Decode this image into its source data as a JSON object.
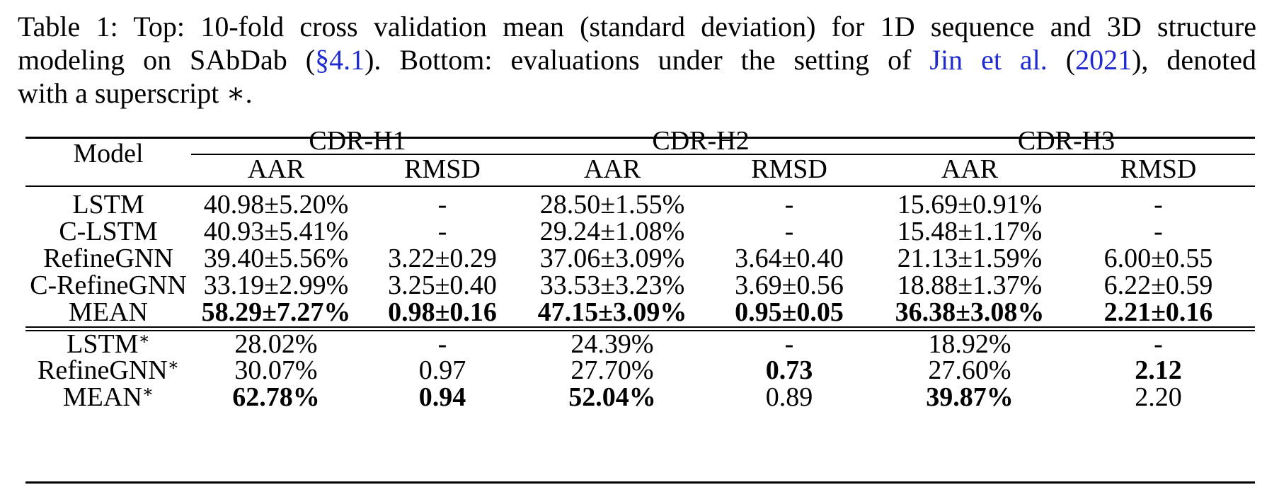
{
  "caption": {
    "part1": "Table 1: Top: 10-fold cross validation mean (standard deviation) for 1D sequence and 3D structure",
    "part2a": "modeling on SAbDab (",
    "part2_ref": "§4.1",
    "part2b": ").  Bottom: evaluations under the setting of ",
    "part2_cite": "Jin et al.",
    "part2c": " (",
    "part2_year": "2021",
    "part2d": "), denoted",
    "part3": "with a superscript ∗."
  },
  "table": {
    "model_header": "Model",
    "groups": [
      "CDR-H1",
      "CDR-H2",
      "CDR-H3"
    ],
    "subheaders": [
      "AAR",
      "RMSD",
      "AAR",
      "RMSD",
      "AAR",
      "RMSD"
    ],
    "top_rows": [
      {
        "model": "LSTM",
        "values": [
          "40.98±5.20%",
          "-",
          "28.50±1.55%",
          "-",
          "15.69±0.91%",
          "-"
        ]
      },
      {
        "model": "C-LSTM",
        "values": [
          "40.93±5.41%",
          "-",
          "29.24±1.08%",
          "-",
          "15.48±1.17%",
          "-"
        ]
      },
      {
        "model": "RefineGNN",
        "values": [
          "39.40±5.56%",
          "3.22±0.29",
          "37.06±3.09%",
          "3.64±0.40",
          "21.13±1.59%",
          "6.00±0.55"
        ]
      },
      {
        "model": "C-RefineGNN",
        "values": [
          "33.19±2.99%",
          "3.25±0.40",
          "33.53±3.23%",
          "3.69±0.56",
          "18.88±1.37%",
          "6.22±0.59"
        ]
      },
      {
        "model": "MEAN",
        "values": [
          "58.29±7.27%",
          "0.98±0.16",
          "47.15±3.09%",
          "0.95±0.05",
          "36.38±3.08%",
          "2.21±0.16"
        ]
      }
    ],
    "bottom_rows": [
      {
        "model": "LSTM",
        "sup": "∗",
        "values": [
          "28.02%",
          "-",
          "24.39%",
          "-",
          "18.92%",
          "-"
        ]
      },
      {
        "model": "RefineGNN",
        "sup": "∗",
        "values": [
          "30.07%",
          "0.97",
          "27.70%",
          "0.73",
          "27.60%",
          "2.12"
        ]
      },
      {
        "model": "MEAN",
        "sup": "∗",
        "values": [
          "62.78%",
          "0.94",
          "52.04%",
          "0.89",
          "39.87%",
          "2.20"
        ]
      }
    ]
  }
}
